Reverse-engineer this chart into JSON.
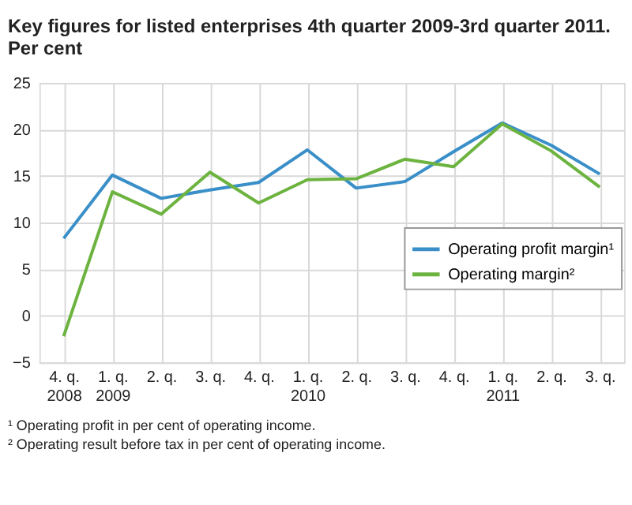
{
  "chart_data": {
    "type": "line",
    "title": "Key figures for listed enterprises 4th quarter 2009-3rd quarter 2011. Per cent",
    "categories": [
      "4. q.\n2008",
      "1. q.\n2009",
      "2. q.",
      "3. q.",
      "4. q.",
      "1. q.\n2010",
      "2. q.",
      "3. q.",
      "4. q.",
      "1. q.\n2011",
      "2. q.",
      "3. q."
    ],
    "series": [
      {
        "name": "Operating profit margin¹",
        "color": "#3a8fc8",
        "values": [
          8.3,
          15.1,
          12.6,
          13.5,
          14.3,
          17.8,
          13.7,
          14.4,
          17.6,
          20.7,
          18.3,
          15.2
        ]
      },
      {
        "name": "Operating margin²",
        "color": "#6cb33f",
        "values": [
          -2.2,
          13.3,
          10.9,
          15.4,
          12.1,
          14.6,
          14.7,
          16.8,
          16.0,
          20.6,
          17.7,
          13.8
        ]
      }
    ],
    "ylim": [
      -5,
      25
    ],
    "yticks": [
      -5,
      0,
      5,
      10,
      15,
      20,
      25
    ],
    "grid": true,
    "legend": "right",
    "marker": "none",
    "line_style": "solid",
    "annotations": [
      "¹ Operating profit in per cent of operating income.",
      "² Operating result before tax in per cent of operating income."
    ]
  }
}
